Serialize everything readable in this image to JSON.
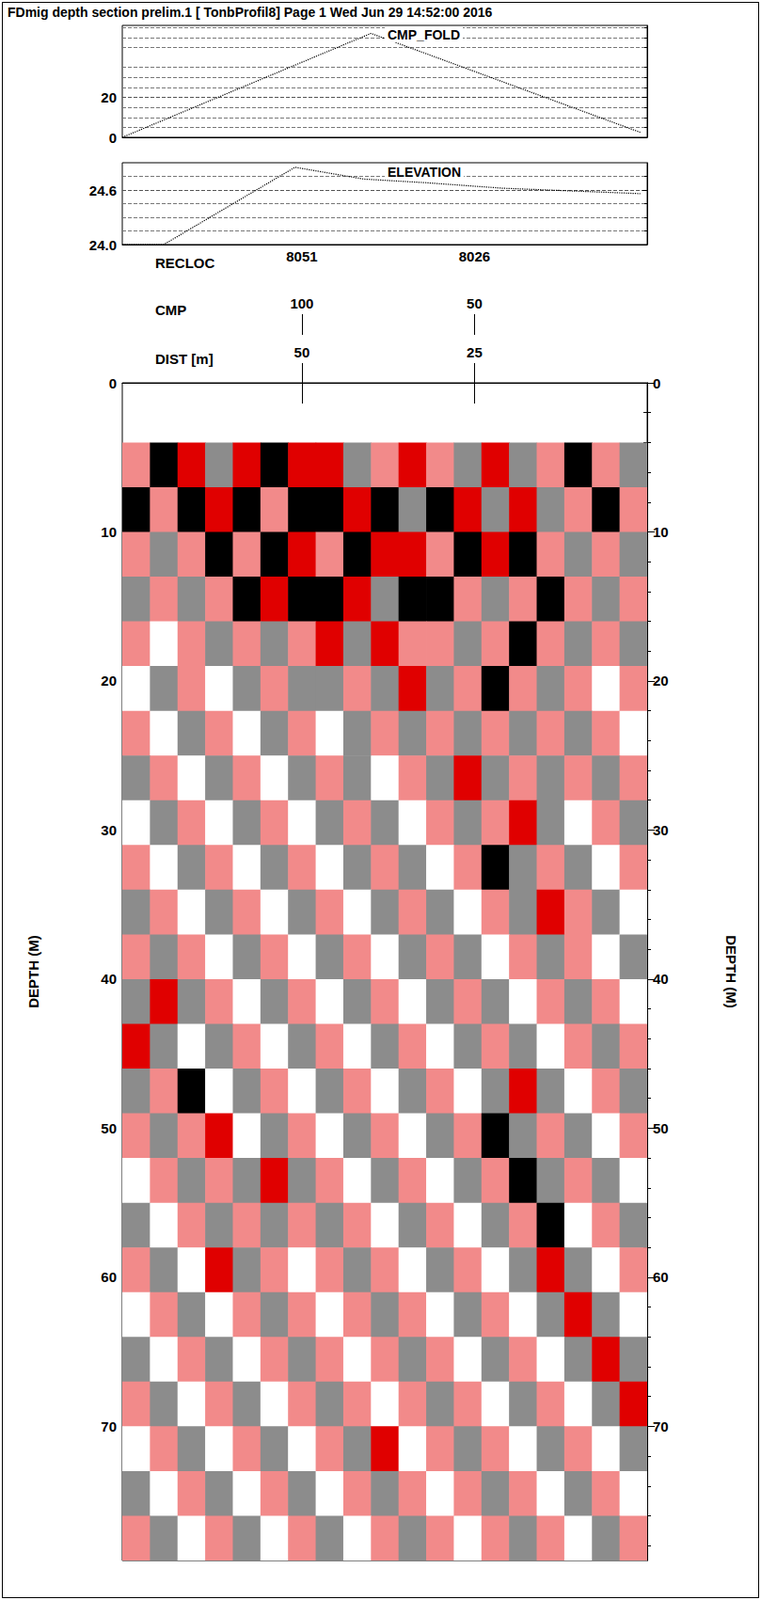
{
  "title": "FDmig depth section prelim.1 [ TonbProfil8] Page 1 Wed Jun 29 14:52:00 2016",
  "chart_data": [
    {
      "type": "line",
      "title": "CMP_FOLD",
      "xlim": [
        0,
        76
      ],
      "ylim": [
        0,
        56
      ],
      "yticks": [
        0,
        20
      ],
      "x": [
        76,
        40,
        1
      ],
      "values": [
        0,
        52,
        2.5
      ],
      "color": "#000000",
      "line_style": "dotted",
      "grid": true,
      "tick_labels": "y"
    },
    {
      "type": "line",
      "title": "ELEVATION",
      "xlim": [
        0,
        76
      ],
      "ylim": [
        24,
        24.9
      ],
      "yticks": [
        {
          "value": 24,
          "label": "24.0"
        },
        24.6
      ],
      "x": [
        76,
        70,
        51,
        41,
        32,
        21,
        1
      ],
      "values": [
        24.0,
        24.0,
        24.85,
        24.72,
        24.68,
        24.62,
        24.56
      ],
      "color": "#000000",
      "line_style": "dotted",
      "grid": true,
      "tick_labels": "y"
    },
    {
      "type": "heatmap",
      "xlim": [
        0,
        76
      ],
      "ylim": [
        0,
        79
      ],
      "yticks": [
        0,
        10,
        20,
        30,
        40,
        50,
        60,
        70
      ],
      "ylabel": "DEPTH (M)",
      "zlim": [
        -2,
        2
      ],
      "x_header_axes": [
        {
          "label": "RECLOC",
          "ticks": [
            {
              "value": 50,
              "label": "8051"
            },
            {
              "value": 25,
              "label": "8026"
            }
          ]
        },
        {
          "label": "CMP",
          "ticks": [
            {
              "value": 50,
              "label": "100"
            },
            {
              "value": 25,
              "label": "50"
            }
          ]
        },
        {
          "label": "DIST [m]",
          "ticks": [
            50,
            25
          ]
        }
      ],
      "x": [
        74,
        70,
        66,
        62,
        58,
        54,
        50,
        46,
        42,
        38,
        34,
        30,
        26,
        22,
        18,
        14,
        10,
        6,
        2
      ],
      "y": [
        5.5,
        8.5,
        11.5,
        14.5,
        17.5,
        20.5,
        23.5,
        26.5,
        29.5,
        32.5,
        35.5,
        38.5,
        41.5,
        44.5,
        47.5,
        50.5,
        53.5,
        56.5,
        59.5,
        62.5,
        65.5,
        68.5,
        71.5,
        74.5,
        77.5
      ],
      "cells": [
        [
          1,
          -2,
          2,
          -1,
          2,
          -2,
          2,
          2,
          -1,
          1,
          2,
          1,
          -1,
          2,
          -1,
          1,
          -2,
          1,
          -1
        ],
        [
          -2,
          1,
          -2,
          2,
          -2,
          1,
          -2,
          -2,
          2,
          -2,
          -1,
          -2,
          2,
          -1,
          2,
          -1,
          1,
          -2,
          1
        ],
        [
          1,
          -1,
          1,
          -2,
          1,
          -2,
          2,
          1,
          -2,
          2,
          2,
          1,
          -2,
          2,
          -2,
          1,
          -1,
          1,
          -1
        ],
        [
          -1,
          1,
          -1,
          1,
          -2,
          2,
          -2,
          -2,
          2,
          -1,
          -2,
          -2,
          1,
          -1,
          1,
          -2,
          1,
          -1,
          1
        ],
        [
          1,
          0,
          1,
          -1,
          1,
          -1,
          1,
          2,
          -1,
          2,
          1,
          1,
          -1,
          1,
          -2,
          1,
          -1,
          1,
          -1
        ],
        [
          0,
          -1,
          1,
          0,
          -1,
          1,
          -1,
          -1,
          1,
          -1,
          2,
          -1,
          1,
          -2,
          1,
          -1,
          1,
          0,
          1
        ],
        [
          1,
          0,
          -1,
          1,
          0,
          -1,
          1,
          0,
          -1,
          1,
          -1,
          1,
          -1,
          1,
          -1,
          1,
          -1,
          1,
          0
        ],
        [
          -1,
          1,
          0,
          -1,
          1,
          0,
          -1,
          1,
          -1,
          0,
          1,
          -1,
          2,
          -1,
          1,
          -1,
          1,
          -1,
          1
        ],
        [
          0,
          -1,
          1,
          0,
          -1,
          1,
          0,
          -1,
          1,
          -1,
          0,
          1,
          -1,
          1,
          2,
          -1,
          0,
          1,
          -1
        ],
        [
          1,
          0,
          -1,
          1,
          0,
          -1,
          1,
          0,
          -1,
          1,
          -1,
          0,
          1,
          -2,
          -1,
          1,
          -1,
          0,
          1
        ],
        [
          -1,
          1,
          0,
          -1,
          1,
          0,
          -1,
          1,
          0,
          -1,
          1,
          -1,
          0,
          1,
          -1,
          2,
          1,
          -1,
          0
        ],
        [
          1,
          -1,
          1,
          0,
          -1,
          1,
          0,
          -1,
          1,
          0,
          -1,
          1,
          -1,
          0,
          1,
          -1,
          1,
          0,
          -1
        ],
        [
          -1,
          2,
          -1,
          1,
          0,
          -1,
          1,
          0,
          -1,
          1,
          0,
          -1,
          1,
          -1,
          0,
          1,
          -1,
          1,
          0
        ],
        [
          2,
          -1,
          0,
          -1,
          1,
          0,
          -1,
          1,
          0,
          -1,
          1,
          0,
          -1,
          1,
          -1,
          0,
          1,
          -1,
          1
        ],
        [
          -1,
          1,
          -2,
          0,
          -1,
          1,
          0,
          -1,
          1,
          0,
          -1,
          1,
          0,
          -1,
          2,
          -1,
          0,
          1,
          -1
        ],
        [
          1,
          -1,
          1,
          2,
          0,
          -1,
          1,
          0,
          -1,
          1,
          0,
          -1,
          1,
          -2,
          -1,
          1,
          -1,
          0,
          1
        ],
        [
          0,
          1,
          -1,
          1,
          -1,
          2,
          -1,
          1,
          0,
          -1,
          1,
          0,
          -1,
          1,
          -2,
          -1,
          1,
          -1,
          0
        ],
        [
          -1,
          0,
          1,
          -1,
          1,
          -1,
          1,
          -1,
          1,
          0,
          -1,
          1,
          0,
          -1,
          1,
          -2,
          0,
          1,
          -1
        ],
        [
          1,
          -1,
          0,
          2,
          -1,
          1,
          0,
          1,
          -1,
          1,
          0,
          -1,
          1,
          0,
          -1,
          2,
          -1,
          0,
          1
        ],
        [
          0,
          1,
          -1,
          0,
          1,
          -1,
          1,
          0,
          1,
          -1,
          1,
          0,
          -1,
          1,
          0,
          -1,
          2,
          -1,
          0
        ],
        [
          -1,
          0,
          1,
          -1,
          0,
          1,
          -1,
          1,
          0,
          1,
          -1,
          1,
          0,
          -1,
          1,
          0,
          -1,
          2,
          -1
        ],
        [
          1,
          -1,
          0,
          1,
          -1,
          0,
          1,
          -1,
          1,
          0,
          1,
          -1,
          1,
          0,
          -1,
          1,
          0,
          -1,
          2
        ],
        [
          0,
          1,
          -1,
          0,
          1,
          -1,
          0,
          1,
          -1,
          2,
          0,
          1,
          -1,
          1,
          0,
          -1,
          1,
          0,
          -1
        ],
        [
          -1,
          0,
          1,
          -1,
          0,
          1,
          -1,
          0,
          1,
          -1,
          1,
          0,
          1,
          -1,
          1,
          0,
          -1,
          1,
          0
        ],
        [
          1,
          -1,
          0,
          1,
          -1,
          0,
          1,
          -1,
          0,
          1,
          -1,
          1,
          0,
          1,
          -1,
          1,
          0,
          -1,
          1
        ]
      ]
    }
  ]
}
